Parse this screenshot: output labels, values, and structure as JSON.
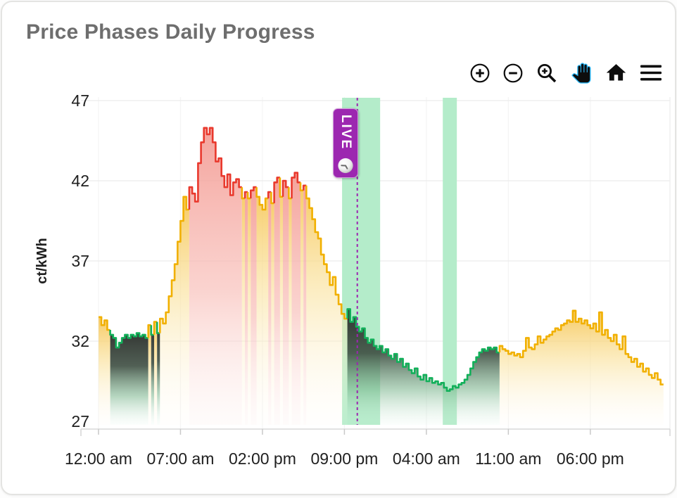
{
  "card": {
    "title": "Price Phases Daily Progress"
  },
  "toolbar": {
    "icons": [
      "zoom-in",
      "zoom-out",
      "box-zoom",
      "pan",
      "home-reset",
      "menu"
    ],
    "active_tool": "pan",
    "icon_color": "#0d0d0d",
    "active_color": "#29b6f6"
  },
  "live_badge": {
    "label": "LIVE",
    "color": "#9c27b0",
    "text_color": "#ffffff"
  },
  "chart_data": {
    "type": "area",
    "step": true,
    "title": "Price Phases Daily Progress",
    "xlabel": "",
    "ylabel": "ct/kWh",
    "ylim": [
      27,
      47
    ],
    "xlim_hours": [
      -1.5,
      48.8
    ],
    "grid": true,
    "legend": false,
    "y_ticks": [
      27,
      32,
      37,
      42,
      47
    ],
    "x_ticks": [
      {
        "hour": 0,
        "label": "12:00 am"
      },
      {
        "hour": 7,
        "label": "07:00 am"
      },
      {
        "hour": 14,
        "label": "02:00 pm"
      },
      {
        "hour": 21,
        "label": "09:00 pm"
      },
      {
        "hour": 28,
        "label": "04:00 am"
      },
      {
        "hour": 35,
        "label": "11:00 am"
      },
      {
        "hour": 42,
        "label": "06:00 pm"
      }
    ],
    "step_hours": 0.25,
    "values": [
      33.5,
      33.0,
      33.3,
      32.7,
      32.4,
      32.2,
      31.6,
      31.9,
      32.2,
      32.4,
      32.2,
      32.4,
      32.3,
      32.5,
      32.3,
      32.4,
      32.2,
      33.0,
      32.4,
      33.2,
      32.5,
      33.4,
      33.1,
      33.8,
      34.8,
      35.8,
      36.8,
      38.2,
      39.5,
      41.0,
      40.2,
      41.6,
      41.2,
      40.7,
      43.1,
      44.4,
      45.3,
      44.9,
      45.3,
      44.4,
      43.2,
      43.4,
      42.3,
      41.6,
      42.4,
      41.1,
      41.9,
      42.1,
      41.6,
      40.9,
      41.3,
      40.9,
      41.4,
      41.6,
      41.0,
      40.5,
      40.2,
      40.9,
      41.3,
      40.6,
      41.9,
      42.2,
      41.0,
      42.0,
      41.6,
      40.9,
      42.2,
      42.5,
      41.9,
      41.4,
      41.7,
      40.9,
      40.3,
      39.6,
      38.8,
      38.4,
      37.4,
      36.8,
      36.3,
      35.5,
      36.0,
      34.9,
      34.3,
      33.7,
      33.4,
      34.0,
      33.2,
      33.5,
      32.9,
      32.6,
      32.8,
      32.2,
      31.9,
      32.1,
      31.7,
      31.5,
      31.7,
      31.3,
      31.5,
      31.1,
      30.9,
      31.2,
      30.7,
      30.9,
      30.4,
      30.6,
      30.2,
      30.0,
      30.3,
      29.8,
      29.6,
      29.9,
      29.5,
      29.7,
      29.4,
      29.5,
      29.3,
      29.4,
      29.1,
      28.9,
      29.0,
      29.2,
      29.1,
      29.3,
      29.4,
      29.6,
      29.9,
      30.3,
      30.7,
      31.0,
      31.3,
      31.5,
      31.4,
      31.6,
      31.5,
      31.6,
      31.3,
      31.7,
      31.5,
      31.4,
      31.2,
      31.3,
      31.1,
      31.2,
      31.0,
      31.4,
      32.2,
      31.6,
      31.5,
      31.8,
      32.3,
      31.9,
      32.1,
      32.3,
      32.4,
      32.6,
      32.8,
      32.7,
      33.0,
      33.1,
      33.3,
      33.2,
      33.9,
      33.2,
      33.4,
      33.1,
      33.3,
      33.0,
      32.8,
      33.1,
      32.6,
      33.8,
      32.4,
      32.7,
      32.2,
      32.0,
      32.4,
      31.8,
      31.5,
      32.3,
      31.2,
      31.0,
      30.7,
      30.9,
      30.4,
      30.6,
      30.1,
      30.3,
      29.9,
      29.7,
      30.0,
      29.6,
      29.3
    ],
    "phases": [
      0,
      0,
      0,
      0,
      1,
      1,
      1,
      1,
      1,
      1,
      1,
      1,
      1,
      1,
      1,
      1,
      1,
      0,
      1,
      0,
      1,
      0,
      0,
      0,
      0,
      0,
      0,
      0,
      0,
      0,
      0,
      2,
      2,
      2,
      2,
      2,
      2,
      2,
      2,
      2,
      2,
      2,
      2,
      2,
      2,
      2,
      2,
      2,
      2,
      0,
      2,
      0,
      2,
      2,
      0,
      0,
      0,
      0,
      2,
      0,
      2,
      2,
      0,
      2,
      2,
      0,
      2,
      2,
      2,
      0,
      2,
      0,
      0,
      0,
      0,
      0,
      0,
      0,
      0,
      0,
      0,
      0,
      0,
      0,
      0,
      1,
      1,
      1,
      1,
      1,
      1,
      1,
      1,
      1,
      1,
      1,
      1,
      1,
      1,
      1,
      1,
      1,
      1,
      1,
      1,
      1,
      1,
      1,
      1,
      1,
      1,
      1,
      1,
      1,
      1,
      1,
      1,
      1,
      1,
      1,
      1,
      1,
      1,
      1,
      1,
      1,
      1,
      1,
      1,
      1,
      1,
      1,
      1,
      1,
      1,
      1,
      1,
      0,
      0,
      0,
      0,
      0,
      0,
      0,
      0,
      0,
      0,
      0,
      0,
      0,
      0,
      0,
      0,
      0,
      0,
      0,
      0,
      0,
      0,
      0,
      0,
      0,
      0,
      0,
      0,
      0,
      0,
      0,
      0,
      0,
      0,
      0,
      0,
      0,
      0,
      0,
      0,
      0,
      0,
      0,
      0,
      0,
      0,
      0,
      0,
      0,
      0,
      0,
      0,
      0,
      0,
      0,
      0
    ],
    "phase_names": [
      "normal",
      "cheap",
      "expensive"
    ],
    "phase_styles": {
      "normal": {
        "line": "#f1b000",
        "fill_stops": [
          [
            "0%",
            "rgba(246,197,84,0.92)"
          ],
          [
            "45%",
            "rgba(250,227,160,0.62)"
          ],
          [
            "100%",
            "rgba(255,250,238,0.10)"
          ]
        ]
      },
      "cheap": {
        "line": "#12b05a",
        "fill_stops": [
          [
            "0%",
            "rgba(42,44,42,0.96)"
          ],
          [
            "38%",
            "rgba(62,78,66,0.90)"
          ],
          [
            "70%",
            "rgba(122,180,140,0.55)"
          ],
          [
            "100%",
            "rgba(216,242,226,0.10)"
          ]
        ]
      },
      "expensive": {
        "line": "#e9392d",
        "fill_stops": [
          [
            "0%",
            "rgba(243,150,142,0.88)"
          ],
          [
            "55%",
            "rgba(248,189,183,0.66)"
          ],
          [
            "100%",
            "rgba(253,238,236,0.22)"
          ]
        ]
      }
    },
    "green_windows_hours": [
      [
        20.8,
        24.05
      ],
      [
        29.4,
        30.6
      ]
    ],
    "green_window_color": "#aeeac6",
    "live_hour": 22.1,
    "live_color": "#9c27b0",
    "grid_color": "#ececec",
    "axis_color": "#d8d8d8",
    "tick_color": "#c9c9c9",
    "label_color": "#202020"
  }
}
